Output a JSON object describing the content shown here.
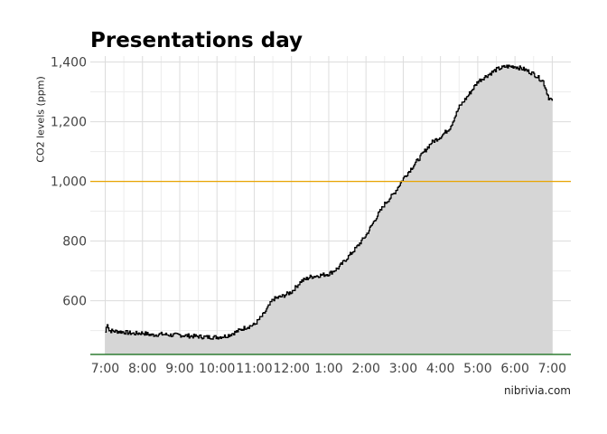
{
  "chart_data": {
    "type": "area",
    "title": "Presentations day",
    "ylabel": "CO2 levels (ppm)",
    "xlabel": "",
    "credit": "nibrivia.com",
    "x_ticks": [
      "7:00",
      "8:00",
      "9:00",
      "10:00",
      "11:00",
      "12:00",
      "1:00",
      "2:00",
      "3:00",
      "4:00",
      "5:00",
      "6:00",
      "7:00"
    ],
    "y_ticks": [
      "600",
      "800",
      "1,000",
      "1,200",
      "1,400"
    ],
    "y_tick_values": [
      600,
      800,
      1000,
      1200,
      1400
    ],
    "x_range_hours": [
      6.6,
      19.5
    ],
    "ylim": [
      420,
      1420
    ],
    "threshold": {
      "value": 1000,
      "color": "#e8a400"
    },
    "baseline_color": "#2e7d32",
    "fill_color": "#d6d6d6",
    "line_color": "#000000",
    "grid": true,
    "series": [
      {
        "x_hours": [
          7.0,
          7.05,
          7.1,
          7.25,
          7.5,
          7.75,
          8.0,
          8.25,
          8.5,
          8.75,
          9.0,
          9.25,
          9.5,
          9.75,
          10.0,
          10.25,
          10.5,
          10.75,
          11.0,
          11.25,
          11.5,
          11.75,
          12.0,
          12.25,
          12.5,
          12.75,
          13.0,
          13.25,
          13.5,
          13.75,
          14.0,
          14.25,
          14.5,
          14.75,
          15.0,
          15.25,
          15.5,
          15.75,
          16.0,
          16.25,
          16.5,
          16.75,
          17.0,
          17.25,
          17.5,
          17.75,
          18.0,
          18.25,
          18.5,
          18.75,
          18.9,
          19.0
        ],
        "values": [
          495,
          525,
          500,
          498,
          495,
          490,
          492,
          485,
          488,
          485,
          485,
          482,
          480,
          478,
          478,
          482,
          495,
          510,
          520,
          555,
          605,
          615,
          630,
          665,
          680,
          685,
          690,
          710,
          745,
          780,
          820,
          875,
          925,
          960,
          1010,
          1050,
          1090,
          1130,
          1150,
          1180,
          1250,
          1290,
          1335,
          1355,
          1375,
          1385,
          1385,
          1375,
          1360,
          1335,
          1280,
          1270
        ]
      }
    ]
  }
}
